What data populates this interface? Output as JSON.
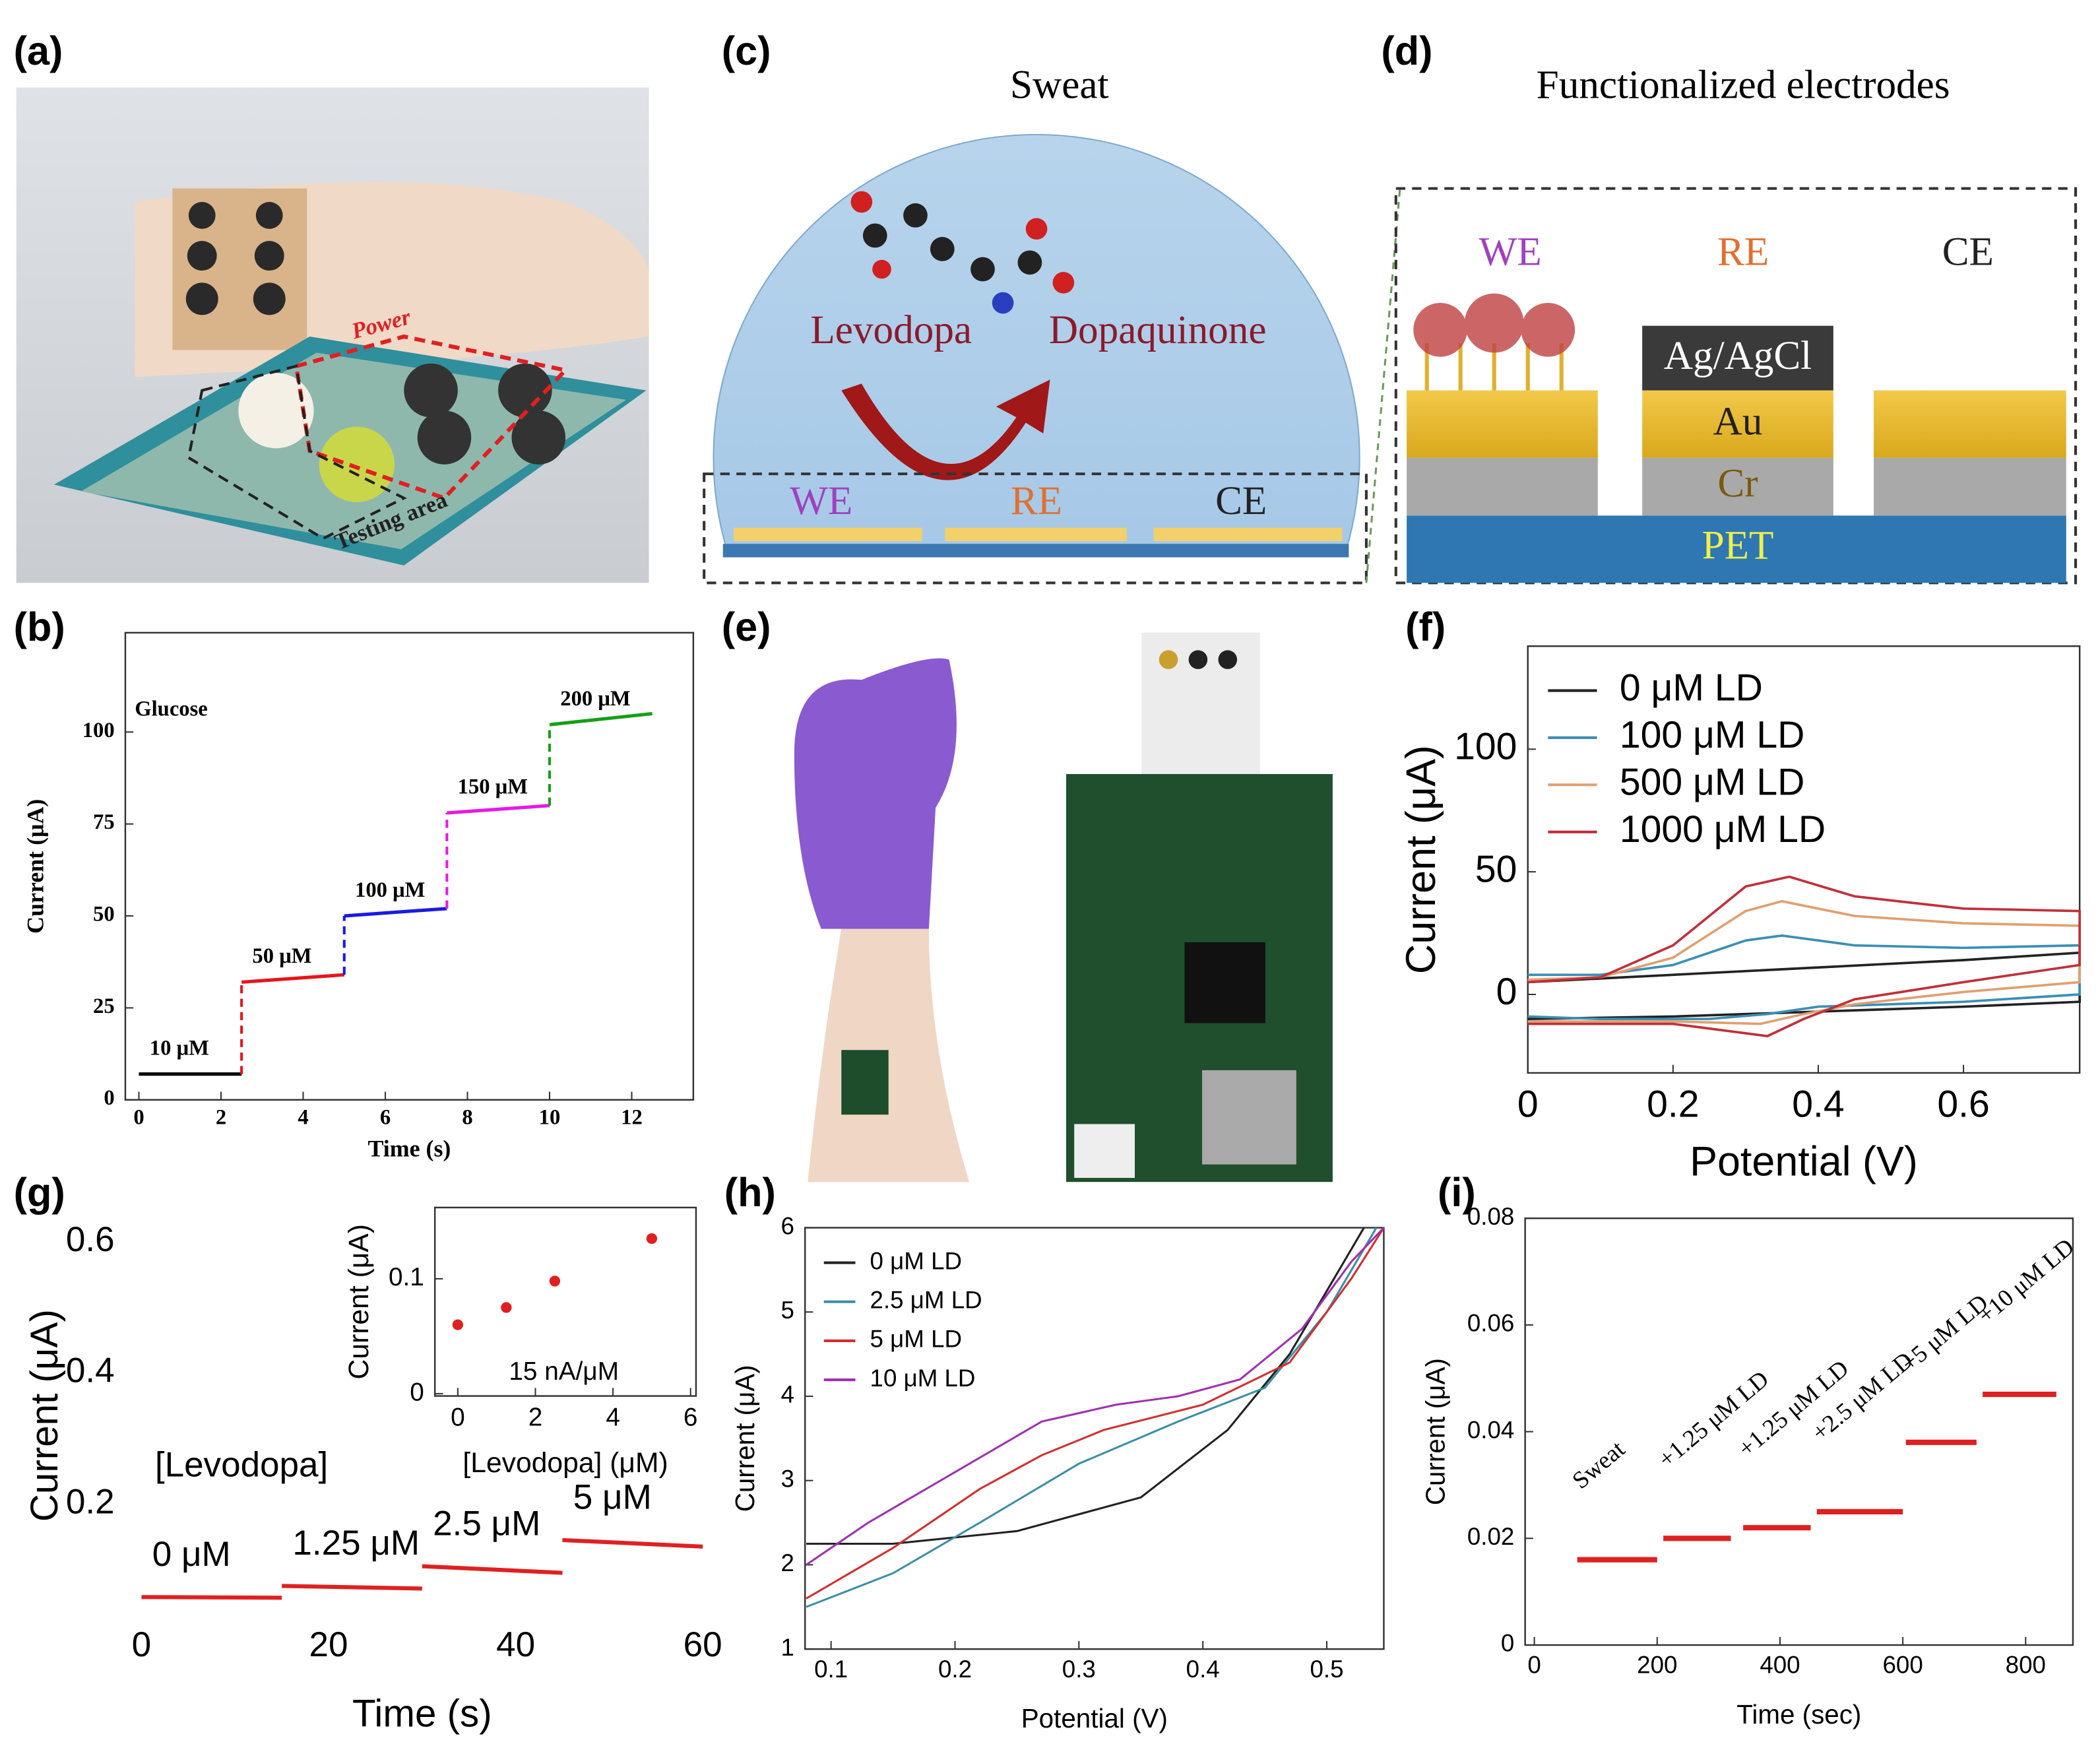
{
  "panel_labels": [
    "(a)",
    "(b)",
    "(c)",
    "(d)",
    "(e)",
    "(f)",
    "(g)",
    "(h)",
    "(i)"
  ],
  "panel_a": {
    "labels": [
      "Power",
      "Testing area"
    ]
  },
  "panel_c": {
    "title": "Sweat",
    "reactant": "Levodopa",
    "product": "Dopaquinone",
    "electrodes": [
      "WE",
      "RE",
      "CE"
    ]
  },
  "panel_d": {
    "title": "Functionalized electrodes",
    "electrodes": [
      "WE",
      "RE",
      "CE"
    ],
    "layers": [
      "Ag/AgCl",
      "Au",
      "Cr",
      "PET"
    ]
  },
  "chart_data": [
    {
      "type": "line",
      "annotation": "Glucose",
      "xlabel": "Time (s)",
      "ylabel": "Current (μA)",
      "xlim": [
        -0.33,
        13.5
      ],
      "ylim": [
        0,
        127
      ],
      "xticks": [
        0,
        2,
        4,
        6,
        8,
        10,
        12
      ],
      "yticks": [
        0,
        25,
        50,
        75,
        100
      ],
      "legend": "none",
      "connectors": "dashed",
      "series": [
        {
          "name": "10 μM",
          "color": "#000000",
          "x": [
            0,
            2.5
          ],
          "values": [
            7,
            7
          ]
        },
        {
          "name": "50 μM",
          "color": "#e8141c",
          "x": [
            2.5,
            5
          ],
          "values": [
            32,
            34
          ]
        },
        {
          "name": "100 μM",
          "color": "#1a1ae6",
          "x": [
            5,
            7.5
          ],
          "values": [
            50,
            52
          ]
        },
        {
          "name": "150 μM",
          "color": "#e61ae6",
          "x": [
            7.5,
            10
          ],
          "values": [
            78,
            80
          ]
        },
        {
          "name": "200 μM",
          "color": "#14a014",
          "x": [
            10,
            12.5
          ],
          "values": [
            102,
            105
          ]
        }
      ]
    },
    {
      "type": "line",
      "xlabel": "Potential (V)",
      "ylabel": "Current (μA)",
      "xlim": [
        0,
        0.76
      ],
      "ylim": [
        -32,
        142
      ],
      "xticks": [
        0,
        0.2,
        0.4,
        0.6
      ],
      "yticks": [
        0,
        50,
        100
      ],
      "legend": "upper left",
      "series": [
        {
          "name": "0 μM LD",
          "color": "#222222",
          "x": [
            0,
            0.2,
            0.4,
            0.6,
            0.76,
            0.76,
            0.6,
            0.4,
            0.2,
            0
          ],
          "values": [
            5,
            8,
            11,
            14,
            17,
            -3,
            -5,
            -7,
            -9,
            -10
          ]
        },
        {
          "name": "100 μM LD",
          "color": "#3b8fb5",
          "x": [
            0,
            0.1,
            0.2,
            0.3,
            0.35,
            0.45,
            0.6,
            0.76,
            0.76,
            0.6,
            0.4,
            0.33,
            0.25,
            0.1,
            0
          ],
          "values": [
            8,
            8,
            12,
            22,
            24,
            20,
            19,
            20,
            0,
            -3,
            -5,
            -8,
            -10,
            -10,
            -9
          ]
        },
        {
          "name": "500 μM LD",
          "color": "#e0a070",
          "x": [
            0,
            0.1,
            0.2,
            0.3,
            0.35,
            0.45,
            0.6,
            0.76,
            0.76,
            0.6,
            0.45,
            0.38,
            0.32,
            0.2,
            0
          ],
          "values": [
            6,
            7,
            15,
            34,
            38,
            32,
            29,
            28,
            5,
            1,
            -4,
            -8,
            -12,
            -11,
            -11
          ]
        },
        {
          "name": "1000 μM LD",
          "color": "#c0303a",
          "x": [
            0,
            0.1,
            0.2,
            0.3,
            0.36,
            0.45,
            0.6,
            0.76,
            0.76,
            0.6,
            0.45,
            0.38,
            0.33,
            0.2,
            0
          ],
          "values": [
            5,
            7,
            20,
            44,
            48,
            40,
            35,
            34,
            12,
            5,
            -2,
            -10,
            -17,
            -12,
            -12
          ]
        }
      ]
    },
    {
      "type": "line",
      "annotation": "[Levodopa]",
      "xlabel": "Time (s)",
      "ylabel": "Current (μA)",
      "xlim": [
        0,
        60
      ],
      "ylim": [
        0.03,
        0.64
      ],
      "xticks": [
        0,
        20,
        40,
        60
      ],
      "yticks": [
        0.2,
        0.4,
        0.6
      ],
      "legend": "none",
      "series": [
        {
          "name": "0 μM",
          "color": "#e02020",
          "x": [
            0,
            15
          ],
          "values": [
            0.058,
            0.057
          ]
        },
        {
          "name": "1.25 μM",
          "color": "#e02020",
          "x": [
            15,
            30
          ],
          "values": [
            0.075,
            0.071
          ]
        },
        {
          "name": "2.5 μM",
          "color": "#e02020",
          "x": [
            30,
            45
          ],
          "values": [
            0.105,
            0.095
          ]
        },
        {
          "name": "5 μM",
          "color": "#e02020",
          "x": [
            45,
            60
          ],
          "values": [
            0.145,
            0.135
          ]
        }
      ]
    },
    {
      "type": "scatter",
      "annotation": "15 nA/μM",
      "xlabel": "[Levodopa] (μM)",
      "ylabel": "Current (μA)",
      "xlim": [
        -0.59,
        6.14
      ],
      "ylim": [
        -0.002,
        0.162
      ],
      "xticks": [
        0,
        2,
        4,
        6
      ],
      "yticks": [
        0,
        0.1
      ],
      "color": "#e02020",
      "x": [
        0,
        1.25,
        2.5,
        5
      ],
      "values": [
        0.06,
        0.075,
        0.098,
        0.135
      ]
    },
    {
      "type": "line",
      "xlabel": "Potential (V)",
      "ylabel": "Current (μA)",
      "xlim": [
        0.079,
        0.546
      ],
      "ylim": [
        1,
        6
      ],
      "xticks": [
        0.1,
        0.2,
        0.3,
        0.4,
        0.5
      ],
      "yticks": [
        1,
        2,
        3,
        4,
        5,
        6
      ],
      "legend": "upper left",
      "series": [
        {
          "name": "0 μM LD",
          "color": "#222222",
          "x": [
            0.08,
            0.15,
            0.25,
            0.35,
            0.42,
            0.47,
            0.51,
            0.53
          ],
          "values": [
            2.25,
            2.25,
            2.4,
            2.8,
            3.6,
            4.5,
            5.5,
            6
          ]
        },
        {
          "name": "2.5 μM LD",
          "color": "#3b8fa5",
          "x": [
            0.08,
            0.15,
            0.22,
            0.3,
            0.38,
            0.45,
            0.5,
            0.54
          ],
          "values": [
            1.5,
            1.9,
            2.5,
            3.2,
            3.7,
            4.1,
            5,
            6
          ]
        },
        {
          "name": "5 μM LD",
          "color": "#d03030",
          "x": [
            0.08,
            0.15,
            0.22,
            0.27,
            0.32,
            0.4,
            0.47,
            0.52,
            0.546
          ],
          "values": [
            1.6,
            2.2,
            2.9,
            3.3,
            3.6,
            3.9,
            4.4,
            5.4,
            6
          ]
        },
        {
          "name": "10 μM LD",
          "color": "#a030b0",
          "x": [
            0.08,
            0.13,
            0.2,
            0.27,
            0.33,
            0.38,
            0.43,
            0.48,
            0.52,
            0.546
          ],
          "values": [
            2,
            2.5,
            3.1,
            3.7,
            3.9,
            4,
            4.2,
            4.8,
            5.6,
            6
          ]
        }
      ]
    },
    {
      "type": "line",
      "xlabel": "Time (sec)",
      "ylabel": "Current (μA)",
      "xlim": [
        -15,
        877
      ],
      "ylim": [
        0,
        0.08
      ],
      "xticks": [
        0,
        200,
        400,
        600,
        800
      ],
      "yticks": [
        0,
        0.02,
        0.04,
        0.06,
        0.08
      ],
      "legend": "none",
      "series": [
        {
          "name": "Sweat",
          "color": "#e02020",
          "x": [
            70,
            200
          ],
          "values": [
            0.016,
            0.016
          ]
        },
        {
          "name": "+1.25 μM LD",
          "color": "#e02020",
          "x": [
            210,
            320
          ],
          "values": [
            0.02,
            0.02
          ]
        },
        {
          "name": "+1.25 μM LD",
          "color": "#e02020",
          "x": [
            340,
            450
          ],
          "values": [
            0.022,
            0.022
          ]
        },
        {
          "name": "+2.5 μM LD",
          "color": "#e02020",
          "x": [
            460,
            600
          ],
          "values": [
            0.025,
            0.025
          ]
        },
        {
          "name": "+5 μM LD",
          "color": "#e02020",
          "x": [
            605,
            720
          ],
          "values": [
            0.038,
            0.038
          ]
        },
        {
          "name": "+10 μM LD",
          "color": "#e02020",
          "x": [
            730,
            850
          ],
          "values": [
            0.047,
            0.047
          ]
        }
      ]
    }
  ]
}
